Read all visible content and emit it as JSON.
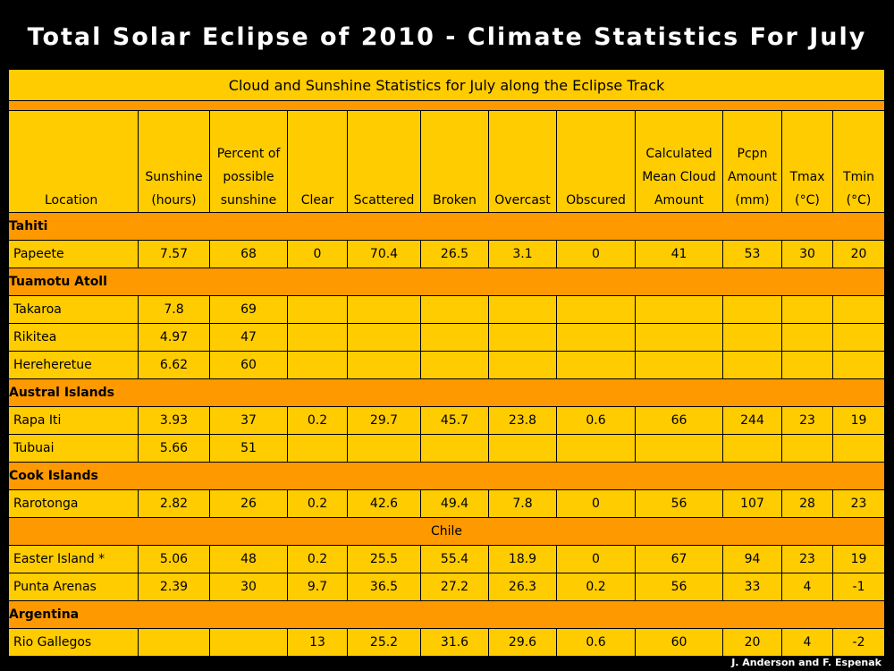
{
  "title": "Total Solar Eclipse of 2010 - Climate Statistics For July",
  "subtitle": "Cloud and Sunshine Statistics for July along the Eclipse Track",
  "credit": "J. Anderson and F. Espenak",
  "colors": {
    "background": "#000000",
    "cell": "#ffcc00",
    "group_row": "#ff9900",
    "title_text": "#ffffff"
  },
  "headers": [
    [
      "Location"
    ],
    [
      "Sunshine",
      "(hours)"
    ],
    [
      "Percent of",
      "possible",
      "sunshine"
    ],
    [
      "Clear"
    ],
    [
      "Scattered"
    ],
    [
      "Broken"
    ],
    [
      "Overcast"
    ],
    [
      "Obscured"
    ],
    [
      "Calculated",
      "Mean Cloud",
      "Amount"
    ],
    [
      "Pcpn",
      "Amount",
      "(mm)"
    ],
    [
      "Tmax",
      "(°C)"
    ],
    [
      "Tmin",
      "(°C)"
    ]
  ],
  "groups": [
    {
      "name": "Tahiti",
      "rows": [
        [
          "Papeete",
          "7.57",
          "68",
          "0",
          "70.4",
          "26.5",
          "3.1",
          "0",
          "41",
          "53",
          "30",
          "20"
        ]
      ]
    },
    {
      "name": "Tuamotu Atoll",
      "rows": [
        [
          "Takaroa",
          "7.8",
          "69",
          "",
          "",
          "",
          "",
          "",
          "",
          "",
          "",
          ""
        ],
        [
          "Rikitea",
          "4.97",
          "47",
          "",
          "",
          "",
          "",
          "",
          "",
          "",
          "",
          ""
        ],
        [
          "Hereheretue",
          "6.62",
          "60",
          "",
          "",
          "",
          "",
          "",
          "",
          "",
          "",
          ""
        ]
      ]
    },
    {
      "name": "Austral Islands",
      "rows": [
        [
          "Rapa Iti",
          "3.93",
          "37",
          "0.2",
          "29.7",
          "45.7",
          "23.8",
          "0.6",
          "66",
          "244",
          "23",
          "19"
        ],
        [
          "Tubuai",
          "5.66",
          "51",
          "",
          "",
          "",
          "",
          "",
          "",
          "",
          "",
          ""
        ]
      ]
    },
    {
      "name": "Cook Islands",
      "rows": [
        [
          "Rarotonga",
          "2.82",
          "26",
          "0.2",
          "42.6",
          "49.4",
          "7.8",
          "0",
          "56",
          "107",
          "28",
          "23"
        ]
      ]
    },
    {
      "name": "Chile",
      "center": true,
      "rows": [
        [
          "Easter Island *",
          "5.06",
          "48",
          "0.2",
          "25.5",
          "55.4",
          "18.9",
          "0",
          "67",
          "94",
          "23",
          "19"
        ],
        [
          "Punta Arenas",
          "2.39",
          "30",
          "9.7",
          "36.5",
          "27.2",
          "26.3",
          "0.2",
          "56",
          "33",
          "4",
          "-1"
        ]
      ]
    },
    {
      "name": "Argentina",
      "rows": [
        [
          "Rio Gallegos",
          "",
          "",
          "13",
          "25.2",
          "31.6",
          "29.6",
          "0.6",
          "60",
          "20",
          "4",
          "-2"
        ]
      ]
    }
  ]
}
